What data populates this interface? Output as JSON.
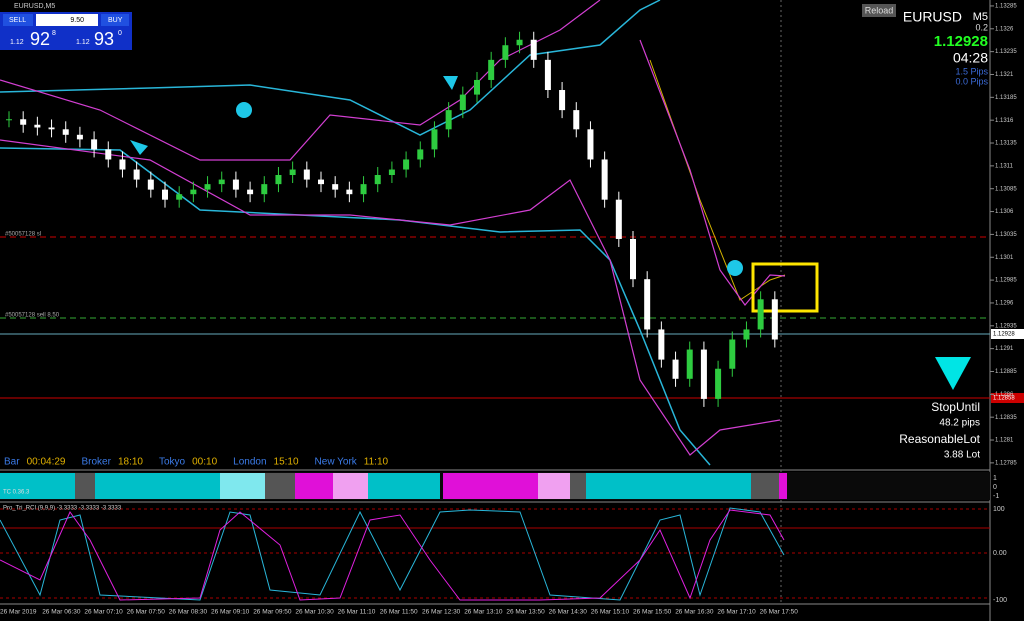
{
  "symbol_label": "EURUSD,M5",
  "trade_panel": {
    "sell": "SELL",
    "lots": "9.50",
    "buy": "BUY",
    "bid_prefix": "1.12",
    "bid_main": "92",
    "bid_sup": "8",
    "ask_prefix": "1.12",
    "ask_main": "93",
    "ask_sup": "0"
  },
  "info_panel": {
    "reload": "Reload",
    "symbol": "EURUSD",
    "timeframe": "M5",
    "spread": "0.2",
    "price": "1.12928",
    "countdown": "04:28",
    "pips1": "1.5 Pips",
    "pips2": "0.0 Pips",
    "stop_title": "StopUntil",
    "stop_value": "48.2 pips",
    "lot_title": "ReasonableLot",
    "lot_value": "3.88 Lot"
  },
  "order_lines": {
    "sl": "#50057128 sl",
    "sell": "#50057128 sell 8.50"
  },
  "price_tags": {
    "bid": "1.12928",
    "red": "1.12858"
  },
  "price_axis": {
    "ylim": [
      1.132915,
      1.127772
    ],
    "ticks": [
      1.13285,
      1.1326,
      1.13235,
      1.1321,
      1.13185,
      1.1316,
      1.13135,
      1.1311,
      1.13085,
      1.1306,
      1.13035,
      1.1301,
      1.12985,
      1.1296,
      1.12935,
      1.1291,
      1.12885,
      1.1286,
      1.12835,
      1.1281,
      1.12785
    ]
  },
  "closes": [
    1.13161,
    1.13155,
    1.13152,
    1.1315,
    1.13144,
    1.13139,
    1.13128,
    1.13117,
    1.13106,
    1.13095,
    1.13084,
    1.13073,
    1.13079,
    1.13084,
    1.1309,
    1.13095,
    1.13084,
    1.13079,
    1.1309,
    1.131,
    1.13106,
    1.13095,
    1.1309,
    1.13084,
    1.13079,
    1.1309,
    1.131,
    1.13106,
    1.13117,
    1.13128,
    1.1315,
    1.13171,
    1.13188,
    1.13204,
    1.13226,
    1.13242,
    1.13248,
    1.13226,
    1.13193,
    1.13171,
    1.1315,
    1.13117,
    1.13073,
    1.1303,
    1.12986,
    1.12931,
    1.12898,
    1.12877,
    1.12909,
    1.12855,
    1.12888,
    1.1292,
    1.12931,
    1.12964,
    1.1292
  ],
  "sessions": [
    {
      "name": "Bar",
      "time": "00:04:29"
    },
    {
      "name": "Broker",
      "time": "18:10"
    },
    {
      "name": "Tokyo",
      "time": "00:10"
    },
    {
      "name": "London",
      "time": "15:10"
    },
    {
      "name": "New York",
      "time": "11:10"
    }
  ],
  "strip": {
    "label": "TC 0.36.3",
    "ticks": [
      "1",
      "0",
      "-1"
    ]
  },
  "rci": {
    "label": "Pro_Tri_RCI (9,9,9) -3.3333 -3.3333 -3.3333",
    "ticks": [
      "100",
      "0.00",
      "-100"
    ]
  },
  "time_labels": [
    "26 Mar 2019",
    "26 Mar 06:30",
    "26 Mar 07:10",
    "26 Mar 07:50",
    "26 Mar 08:30",
    "26 Mar 09:10",
    "26 Mar 09:50",
    "26 Mar 10:30",
    "26 Mar 11:10",
    "26 Mar 11:50",
    "26 Mar 12:30",
    "26 Mar 13:10",
    "26 Mar 13:50",
    "26 Mar 14:30",
    "26 Mar 15:10",
    "26 Mar 15:50",
    "26 Mar 16:30",
    "26 Mar 17:10",
    "26 Mar 17:50"
  ]
}
